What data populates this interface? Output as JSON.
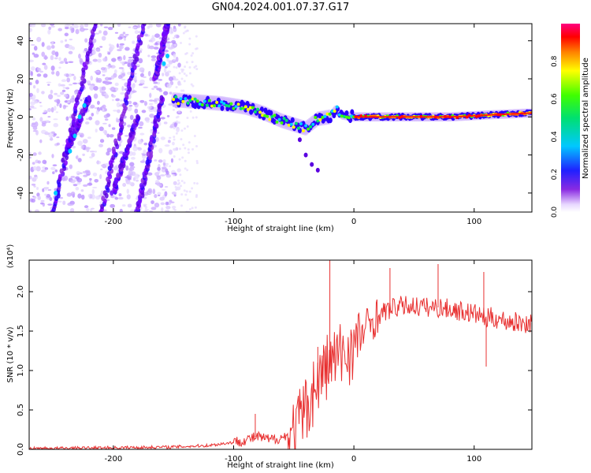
{
  "title": "GN04.2024.001.07.37.G17",
  "chart_data": [
    {
      "type": "heatmap",
      "xlabel": "Height of straight line (km)",
      "ylabel": "Frequency (Hz)",
      "xlim": [
        -270,
        148
      ],
      "ylim": [
        -50,
        49
      ],
      "xticks": [
        -200,
        -100,
        0,
        100
      ],
      "yticks": [
        -40,
        -20,
        0,
        20,
        40
      ],
      "colorbar": {
        "label": "Normalized spectral amplitude",
        "range": [
          0.0,
          1.0
        ],
        "ticks": [
          0.0,
          0.2,
          0.4,
          0.6,
          0.8
        ]
      },
      "ridge": {
        "x": [
          -150,
          -130,
          -110,
          -90,
          -75,
          -60,
          -50,
          -40,
          -30,
          -20,
          -15,
          -10,
          0,
          20,
          50,
          80,
          110,
          145
        ],
        "y": [
          9,
          8,
          7,
          5,
          2,
          -2,
          -4,
          -6,
          -1,
          0,
          4,
          1,
          0,
          0,
          0,
          0,
          1,
          2
        ]
      },
      "diagonal_streaks": [
        {
          "x": [
            -250,
            -215
          ],
          "y": [
            -50,
            49
          ]
        },
        {
          "x": [
            -240,
            -220
          ],
          "y": [
            -20,
            10
          ]
        },
        {
          "x": [
            -210,
            -175
          ],
          "y": [
            -50,
            49
          ]
        },
        {
          "x": [
            -200,
            -180
          ],
          "y": [
            -40,
            0
          ]
        },
        {
          "x": [
            -180,
            -160
          ],
          "y": [
            -50,
            10
          ]
        },
        {
          "x": [
            -165,
            -155
          ],
          "y": [
            20,
            49
          ]
        }
      ]
    },
    {
      "type": "line",
      "xlabel": "Height of straight line (km)",
      "ylabel": "SNR (10 * v/v)",
      "y_multiplier": "(x10⁴)",
      "xlim": [
        -270,
        148
      ],
      "ylim": [
        0,
        2.4
      ],
      "xticks": [
        -200,
        -100,
        0,
        100
      ],
      "yticks": [
        0.0,
        0.5,
        1.0,
        1.5,
        2.0
      ],
      "series": [
        {
          "x": [
            -270,
            -200,
            -150,
            -120,
            -100,
            -90,
            -80,
            -70,
            -60,
            -50,
            -45,
            -40,
            -35,
            -30,
            -25,
            -20,
            -15,
            -10,
            -5,
            0,
            5,
            10,
            20,
            30,
            40,
            50,
            60,
            70,
            80,
            90,
            100,
            105,
            110,
            115,
            120,
            130,
            140,
            148
          ],
          "y": [
            0.01,
            0.02,
            0.03,
            0.05,
            0.09,
            0.12,
            0.16,
            0.12,
            0.15,
            0.2,
            0.35,
            0.5,
            0.7,
            0.85,
            1.0,
            1.1,
            1.15,
            1.2,
            1.25,
            1.3,
            1.4,
            1.55,
            1.7,
            1.78,
            1.82,
            1.82,
            1.8,
            1.8,
            1.78,
            1.75,
            1.72,
            1.7,
            1.65,
            1.68,
            1.65,
            1.62,
            1.6,
            1.6
          ]
        }
      ],
      "spikes": [
        {
          "x": -82,
          "y": 0.45
        },
        {
          "x": -20,
          "y": 2.4
        },
        {
          "x": -30,
          "y": 1.3
        },
        {
          "x": 30,
          "y": 2.3
        },
        {
          "x": 70,
          "y": 2.35
        },
        {
          "x": 108,
          "y": 2.25
        },
        {
          "x": 110,
          "y": 1.05
        }
      ],
      "color": "#e83030"
    }
  ]
}
